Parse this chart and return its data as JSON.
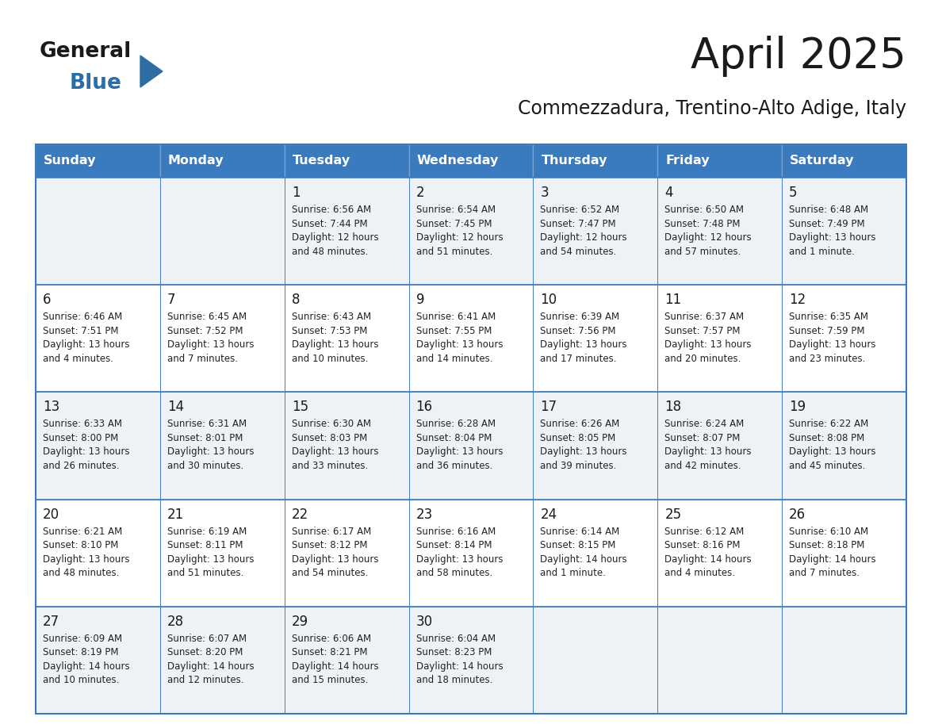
{
  "title": "April 2025",
  "subtitle": "Commezzadura, Trentino-Alto Adige, Italy",
  "header_bg_color": "#3a7abf",
  "header_text_color": "#ffffff",
  "cell_bg_even": "#eef2f7",
  "cell_bg_odd": "#ffffff",
  "border_color": "#3a7abf",
  "day_names": [
    "Sunday",
    "Monday",
    "Tuesday",
    "Wednesday",
    "Thursday",
    "Friday",
    "Saturday"
  ],
  "weeks": [
    [
      {
        "day": "",
        "sunrise": "",
        "sunset": "",
        "daylight": ""
      },
      {
        "day": "",
        "sunrise": "",
        "sunset": "",
        "daylight": ""
      },
      {
        "day": "1",
        "sunrise": "6:56 AM",
        "sunset": "7:44 PM",
        "daylight": "12 hours\nand 48 minutes."
      },
      {
        "day": "2",
        "sunrise": "6:54 AM",
        "sunset": "7:45 PM",
        "daylight": "12 hours\nand 51 minutes."
      },
      {
        "day": "3",
        "sunrise": "6:52 AM",
        "sunset": "7:47 PM",
        "daylight": "12 hours\nand 54 minutes."
      },
      {
        "day": "4",
        "sunrise": "6:50 AM",
        "sunset": "7:48 PM",
        "daylight": "12 hours\nand 57 minutes."
      },
      {
        "day": "5",
        "sunrise": "6:48 AM",
        "sunset": "7:49 PM",
        "daylight": "13 hours\nand 1 minute."
      }
    ],
    [
      {
        "day": "6",
        "sunrise": "6:46 AM",
        "sunset": "7:51 PM",
        "daylight": "13 hours\nand 4 minutes."
      },
      {
        "day": "7",
        "sunrise": "6:45 AM",
        "sunset": "7:52 PM",
        "daylight": "13 hours\nand 7 minutes."
      },
      {
        "day": "8",
        "sunrise": "6:43 AM",
        "sunset": "7:53 PM",
        "daylight": "13 hours\nand 10 minutes."
      },
      {
        "day": "9",
        "sunrise": "6:41 AM",
        "sunset": "7:55 PM",
        "daylight": "13 hours\nand 14 minutes."
      },
      {
        "day": "10",
        "sunrise": "6:39 AM",
        "sunset": "7:56 PM",
        "daylight": "13 hours\nand 17 minutes."
      },
      {
        "day": "11",
        "sunrise": "6:37 AM",
        "sunset": "7:57 PM",
        "daylight": "13 hours\nand 20 minutes."
      },
      {
        "day": "12",
        "sunrise": "6:35 AM",
        "sunset": "7:59 PM",
        "daylight": "13 hours\nand 23 minutes."
      }
    ],
    [
      {
        "day": "13",
        "sunrise": "6:33 AM",
        "sunset": "8:00 PM",
        "daylight": "13 hours\nand 26 minutes."
      },
      {
        "day": "14",
        "sunrise": "6:31 AM",
        "sunset": "8:01 PM",
        "daylight": "13 hours\nand 30 minutes."
      },
      {
        "day": "15",
        "sunrise": "6:30 AM",
        "sunset": "8:03 PM",
        "daylight": "13 hours\nand 33 minutes."
      },
      {
        "day": "16",
        "sunrise": "6:28 AM",
        "sunset": "8:04 PM",
        "daylight": "13 hours\nand 36 minutes."
      },
      {
        "day": "17",
        "sunrise": "6:26 AM",
        "sunset": "8:05 PM",
        "daylight": "13 hours\nand 39 minutes."
      },
      {
        "day": "18",
        "sunrise": "6:24 AM",
        "sunset": "8:07 PM",
        "daylight": "13 hours\nand 42 minutes."
      },
      {
        "day": "19",
        "sunrise": "6:22 AM",
        "sunset": "8:08 PM",
        "daylight": "13 hours\nand 45 minutes."
      }
    ],
    [
      {
        "day": "20",
        "sunrise": "6:21 AM",
        "sunset": "8:10 PM",
        "daylight": "13 hours\nand 48 minutes."
      },
      {
        "day": "21",
        "sunrise": "6:19 AM",
        "sunset": "8:11 PM",
        "daylight": "13 hours\nand 51 minutes."
      },
      {
        "day": "22",
        "sunrise": "6:17 AM",
        "sunset": "8:12 PM",
        "daylight": "13 hours\nand 54 minutes."
      },
      {
        "day": "23",
        "sunrise": "6:16 AM",
        "sunset": "8:14 PM",
        "daylight": "13 hours\nand 58 minutes."
      },
      {
        "day": "24",
        "sunrise": "6:14 AM",
        "sunset": "8:15 PM",
        "daylight": "14 hours\nand 1 minute."
      },
      {
        "day": "25",
        "sunrise": "6:12 AM",
        "sunset": "8:16 PM",
        "daylight": "14 hours\nand 4 minutes."
      },
      {
        "day": "26",
        "sunrise": "6:10 AM",
        "sunset": "8:18 PM",
        "daylight": "14 hours\nand 7 minutes."
      }
    ],
    [
      {
        "day": "27",
        "sunrise": "6:09 AM",
        "sunset": "8:19 PM",
        "daylight": "14 hours\nand 10 minutes."
      },
      {
        "day": "28",
        "sunrise": "6:07 AM",
        "sunset": "8:20 PM",
        "daylight": "14 hours\nand 12 minutes."
      },
      {
        "day": "29",
        "sunrise": "6:06 AM",
        "sunset": "8:21 PM",
        "daylight": "14 hours\nand 15 minutes."
      },
      {
        "day": "30",
        "sunrise": "6:04 AM",
        "sunset": "8:23 PM",
        "daylight": "14 hours\nand 18 minutes."
      },
      {
        "day": "",
        "sunrise": "",
        "sunset": "",
        "daylight": ""
      },
      {
        "day": "",
        "sunrise": "",
        "sunset": "",
        "daylight": ""
      },
      {
        "day": "",
        "sunrise": "",
        "sunset": "",
        "daylight": ""
      }
    ]
  ],
  "logo_text_general": "General",
  "logo_text_blue": "Blue",
  "logo_triangle_color": "#2e6da4",
  "title_fontsize": 38,
  "subtitle_fontsize": 17,
  "header_fontsize": 11.5,
  "day_num_fontsize": 12,
  "cell_text_fontsize": 8.5
}
